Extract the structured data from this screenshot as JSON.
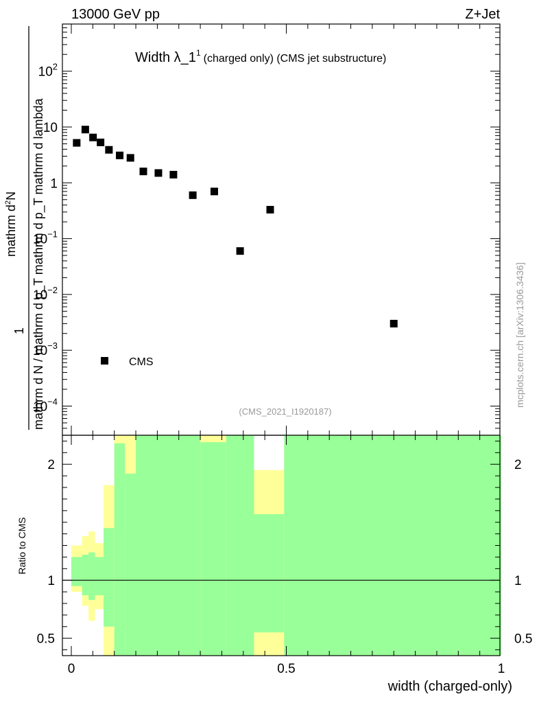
{
  "header": {
    "left": "13000 GeV pp",
    "right": "Z+Jet"
  },
  "watermark": "mcplots.cern.ch [arXiv:1306.3436]",
  "colors": {
    "markers": "#000000",
    "band_inner": "#99ff99",
    "band_outer": "#ffff99",
    "ratio_line": "#000000"
  },
  "chart_data": [
    {
      "type": "scatter",
      "panel": "main",
      "title": "Width λ_1",
      "title_sup": "1",
      "title_suffix": "(charged only) (CMS jet substructure)",
      "ylabel_numerator": "1",
      "ylabel_parts": [
        "mathrm d N / mathrm d p",
        "T",
        " mathrm d p",
        "T",
        " mathrm d lambda",
        "mathrm d",
        "2",
        "N"
      ],
      "ylabel_denominator_html": "mathrm d N / mathrm d p_T mathrm d p_T mathrm d lambda",
      "ylabel_numerator_text": "mathrm d",
      "ylabel_numerator_sup": "2",
      "ylabel_numerator_tail": "N",
      "yscale": "log",
      "ylim": [
        3e-05,
        700
      ],
      "xlim": [
        -0.02,
        1.0
      ],
      "ytick_labels": [
        {
          "value": 0.0001,
          "base": "10",
          "exp": "−4"
        },
        {
          "value": 0.001,
          "base": "10",
          "exp": "−3"
        },
        {
          "value": 0.01,
          "base": "10",
          "exp": "−2"
        },
        {
          "value": 0.1,
          "base": "10",
          "exp": "−1"
        },
        {
          "value": 1,
          "base": "1",
          "exp": ""
        },
        {
          "value": 10,
          "base": "10",
          "exp": ""
        },
        {
          "value": 100,
          "base": "10",
          "exp": "2"
        }
      ],
      "legend": {
        "entries": [
          "CMS"
        ],
        "placement": "bottom-left"
      },
      "reference": "(CMS_2021_I1920187)",
      "series": [
        {
          "name": "CMS",
          "x": [
            0.0125,
            0.0325,
            0.0505,
            0.068,
            0.0875,
            0.1125,
            0.1375,
            0.1675,
            0.2025,
            0.2375,
            0.2825,
            0.3325,
            0.3925,
            0.4625,
            0.75
          ],
          "y": [
            5.2,
            9.0,
            6.5,
            5.3,
            3.9,
            3.1,
            2.8,
            1.6,
            1.5,
            1.4,
            0.6,
            0.7,
            0.06,
            0.33,
            0.003
          ]
        }
      ]
    },
    {
      "type": "area",
      "panel": "ratio",
      "ylabel": "Ratio to CMS",
      "xlabel": "width (charged-only)",
      "ylim": [
        0.35,
        2.25
      ],
      "xlim": [
        -0.02,
        1.0
      ],
      "xticks": [
        {
          "value": 0,
          "label": "0"
        },
        {
          "value": 0.5,
          "label": "0.5"
        },
        {
          "value": 1,
          "label": "1"
        }
      ],
      "yticks": [
        {
          "value": 0.5,
          "label": "0.5"
        },
        {
          "value": 1,
          "label": "1"
        },
        {
          "value": 2,
          "label": "2"
        }
      ],
      "reference_line": 1.0,
      "bins": [
        {
          "x0": 0.0,
          "x1": 0.025,
          "outer": [
            0.9,
            1.3
          ],
          "inner": [
            0.95,
            1.2
          ]
        },
        {
          "x0": 0.025,
          "x1": 0.04,
          "outer": [
            0.78,
            1.38
          ],
          "inner": [
            0.87,
            1.22
          ]
        },
        {
          "x0": 0.04,
          "x1": 0.055,
          "outer": [
            0.65,
            1.42
          ],
          "inner": [
            0.83,
            1.24
          ]
        },
        {
          "x0": 0.055,
          "x1": 0.075,
          "outer": [
            0.75,
            1.32
          ],
          "inner": [
            0.87,
            1.2
          ]
        },
        {
          "x0": 0.075,
          "x1": 0.1,
          "outer": [
            0.35,
            1.82
          ],
          "inner": [
            0.6,
            1.45
          ]
        },
        {
          "x0": 0.1,
          "x1": 0.125,
          "outer": [
            0.35,
            2.28
          ],
          "inner": [
            0.35,
            2.18
          ]
        },
        {
          "x0": 0.125,
          "x1": 0.15,
          "outer": [
            0.35,
            2.28
          ],
          "inner": [
            0.35,
            1.92
          ]
        },
        {
          "x0": 0.15,
          "x1": 0.3,
          "outer": [
            0.35,
            2.28
          ],
          "inner": [
            0.35,
            2.28
          ]
        },
        {
          "x0": 0.3,
          "x1": 0.36,
          "outer": [
            0.35,
            2.28
          ],
          "inner": [
            0.35,
            2.19
          ]
        },
        {
          "x0": 0.36,
          "x1": 0.425,
          "outer": [
            0.35,
            2.28
          ],
          "inner": [
            0.35,
            2.28
          ]
        },
        {
          "x0": 0.425,
          "x1": 0.495,
          "outer": [
            0.35,
            1.95
          ],
          "inner": [
            0.35,
            1.57
          ],
          "inner_gap": [
            0.35,
            0.55
          ]
        },
        {
          "x0": 0.495,
          "x1": 1.0,
          "outer": [
            0.35,
            2.28
          ],
          "inner": [
            0.35,
            2.28
          ]
        }
      ]
    }
  ]
}
